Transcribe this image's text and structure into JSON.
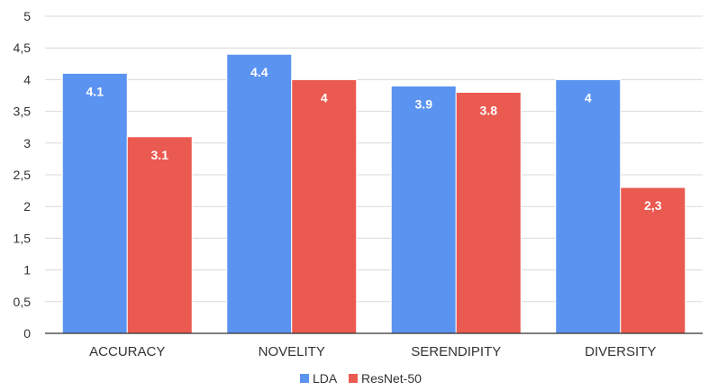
{
  "chart_data": {
    "type": "bar",
    "categories": [
      "ACCURACY",
      "NOVELITY",
      "SERENDIPITY",
      "DIVERSITY"
    ],
    "series": [
      {
        "name": "LDA",
        "color": "#5b93f0",
        "values": [
          4.1,
          4.4,
          3.9,
          4.0
        ],
        "labels": [
          "4.1",
          "4.4",
          "3.9",
          "4"
        ]
      },
      {
        "name": "ResNet-50",
        "color": "#ea5a50",
        "values": [
          3.1,
          4.0,
          3.8,
          2.3
        ],
        "labels": [
          "3.1",
          "4",
          "3.8",
          "2,3"
        ]
      }
    ],
    "ylim": [
      0,
      5
    ],
    "yticks": [
      0,
      0.5,
      1,
      1.5,
      2,
      2.5,
      3,
      3.5,
      4,
      4.5,
      5
    ],
    "ytick_labels": [
      "0",
      "0,5",
      "1",
      "1,5",
      "2",
      "2,5",
      "3",
      "3,5",
      "4",
      "4,5",
      "5"
    ],
    "grid": true,
    "legend": "bottom-center",
    "title": "",
    "xlabel": "",
    "ylabel": ""
  }
}
